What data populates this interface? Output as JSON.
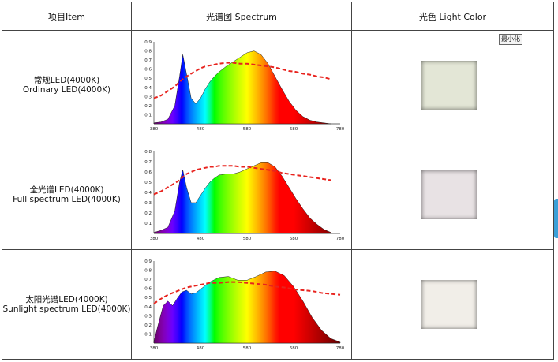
{
  "table": {
    "headers": [
      "项目Item",
      "光谱图 Spectrum",
      "光色 Light Color"
    ],
    "rows": [
      {
        "name_cn": "常规LED(4000K)",
        "name_en": "Ordinary LED(4000K)",
        "swatch_color": "#e3e6d6",
        "chart_data": {
          "type": "area",
          "x": [
            380,
            395,
            410,
            425,
            435,
            442,
            450,
            460,
            470,
            480,
            490,
            500,
            510,
            520,
            535,
            550,
            565,
            580,
            595,
            610,
            625,
            640,
            655,
            670,
            685,
            700,
            715,
            730,
            745,
            760
          ],
          "series": [
            {
              "values": [
                0.01,
                0.02,
                0.05,
                0.2,
                0.52,
                0.76,
                0.55,
                0.28,
                0.22,
                0.28,
                0.38,
                0.46,
                0.52,
                0.57,
                0.63,
                0.68,
                0.73,
                0.78,
                0.8,
                0.76,
                0.66,
                0.52,
                0.38,
                0.25,
                0.15,
                0.08,
                0.04,
                0.02,
                0.01,
                0.0
              ]
            },
            {
              "values": [
                0.28,
                0.31,
                0.36,
                0.41,
                0.46,
                0.49,
                0.52,
                0.55,
                0.58,
                0.61,
                0.63,
                0.64,
                0.65,
                0.66,
                0.67,
                0.67,
                0.66,
                0.66,
                0.65,
                0.64,
                0.63,
                0.62,
                0.6,
                0.58,
                0.57,
                0.55,
                0.54,
                0.52,
                0.51,
                0.49
              ]
            }
          ],
          "x_ticks": [
            "380",
            "480",
            "580",
            "680",
            "780"
          ],
          "y_ticks": [
            "0.9",
            "0.8",
            "0.7",
            "0.6",
            "0.5",
            "0.4",
            "0.3",
            "0.2",
            "0.1"
          ],
          "ylim": [
            0,
            0.9
          ],
          "colors": {
            "fill": "spectrum",
            "overlay": "#e8231e"
          }
        }
      },
      {
        "name_cn": "全光谱LED(4000K)",
        "name_en": "Full spectrum LED(4000K)",
        "swatch_color": "#e8e2e4",
        "chart_data": {
          "type": "area",
          "x": [
            380,
            395,
            410,
            425,
            435,
            442,
            450,
            460,
            470,
            480,
            490,
            500,
            510,
            520,
            535,
            550,
            565,
            580,
            595,
            610,
            625,
            640,
            655,
            670,
            685,
            700,
            715,
            730,
            745,
            760
          ],
          "series": [
            {
              "values": [
                0.01,
                0.03,
                0.06,
                0.22,
                0.5,
                0.62,
                0.45,
                0.3,
                0.3,
                0.37,
                0.44,
                0.5,
                0.54,
                0.57,
                0.58,
                0.58,
                0.6,
                0.63,
                0.66,
                0.69,
                0.69,
                0.65,
                0.56,
                0.45,
                0.34,
                0.24,
                0.15,
                0.09,
                0.04,
                0.01
              ]
            },
            {
              "values": [
                0.38,
                0.41,
                0.45,
                0.49,
                0.52,
                0.55,
                0.58,
                0.6,
                0.62,
                0.63,
                0.64,
                0.65,
                0.65,
                0.66,
                0.66,
                0.66,
                0.65,
                0.65,
                0.64,
                0.63,
                0.62,
                0.61,
                0.59,
                0.58,
                0.57,
                0.56,
                0.55,
                0.54,
                0.53,
                0.52
              ]
            }
          ],
          "x_ticks": [
            "380",
            "480",
            "580",
            "680",
            "780"
          ],
          "y_ticks": [
            "0.8",
            "0.7",
            "0.6",
            "0.5",
            "0.4",
            "0.3",
            "0.2",
            "0.1"
          ],
          "ylim": [
            0,
            0.8
          ],
          "colors": {
            "fill": "spectrum",
            "overlay": "#e8231e"
          }
        }
      },
      {
        "name_cn": "太阳光谱LED(4000K)",
        "name_en": "Sunlight spectrum LED(4000K)",
        "swatch_color": "#f1eee8",
        "chart_data": {
          "type": "area",
          "x": [
            380,
            390,
            400,
            410,
            420,
            430,
            440,
            450,
            460,
            470,
            480,
            490,
            500,
            520,
            540,
            560,
            580,
            600,
            620,
            640,
            660,
            680,
            700,
            720,
            740,
            760,
            780
          ],
          "series": [
            {
              "values": [
                0.02,
                0.22,
                0.41,
                0.46,
                0.41,
                0.49,
                0.56,
                0.58,
                0.54,
                0.55,
                0.59,
                0.63,
                0.67,
                0.72,
                0.73,
                0.69,
                0.69,
                0.73,
                0.78,
                0.79,
                0.74,
                0.62,
                0.46,
                0.28,
                0.14,
                0.05,
                0.01
              ]
            },
            {
              "values": [
                0.43,
                0.47,
                0.5,
                0.53,
                0.55,
                0.57,
                0.59,
                0.61,
                0.62,
                0.63,
                0.64,
                0.65,
                0.66,
                0.66,
                0.67,
                0.67,
                0.66,
                0.65,
                0.64,
                0.62,
                0.61,
                0.59,
                0.58,
                0.57,
                0.55,
                0.54,
                0.53
              ]
            }
          ],
          "x_ticks": [
            "380",
            "480",
            "580",
            "680",
            "780"
          ],
          "y_ticks": [
            "0.9",
            "0.8",
            "0.7",
            "0.6",
            "0.5",
            "0.4",
            "0.3",
            "0.2",
            "0.1"
          ],
          "ylim": [
            0,
            0.9
          ],
          "colors": {
            "fill": "spectrum",
            "overlay": "#e8231e"
          }
        }
      }
    ]
  },
  "tooltip": {
    "label": "最小化"
  }
}
